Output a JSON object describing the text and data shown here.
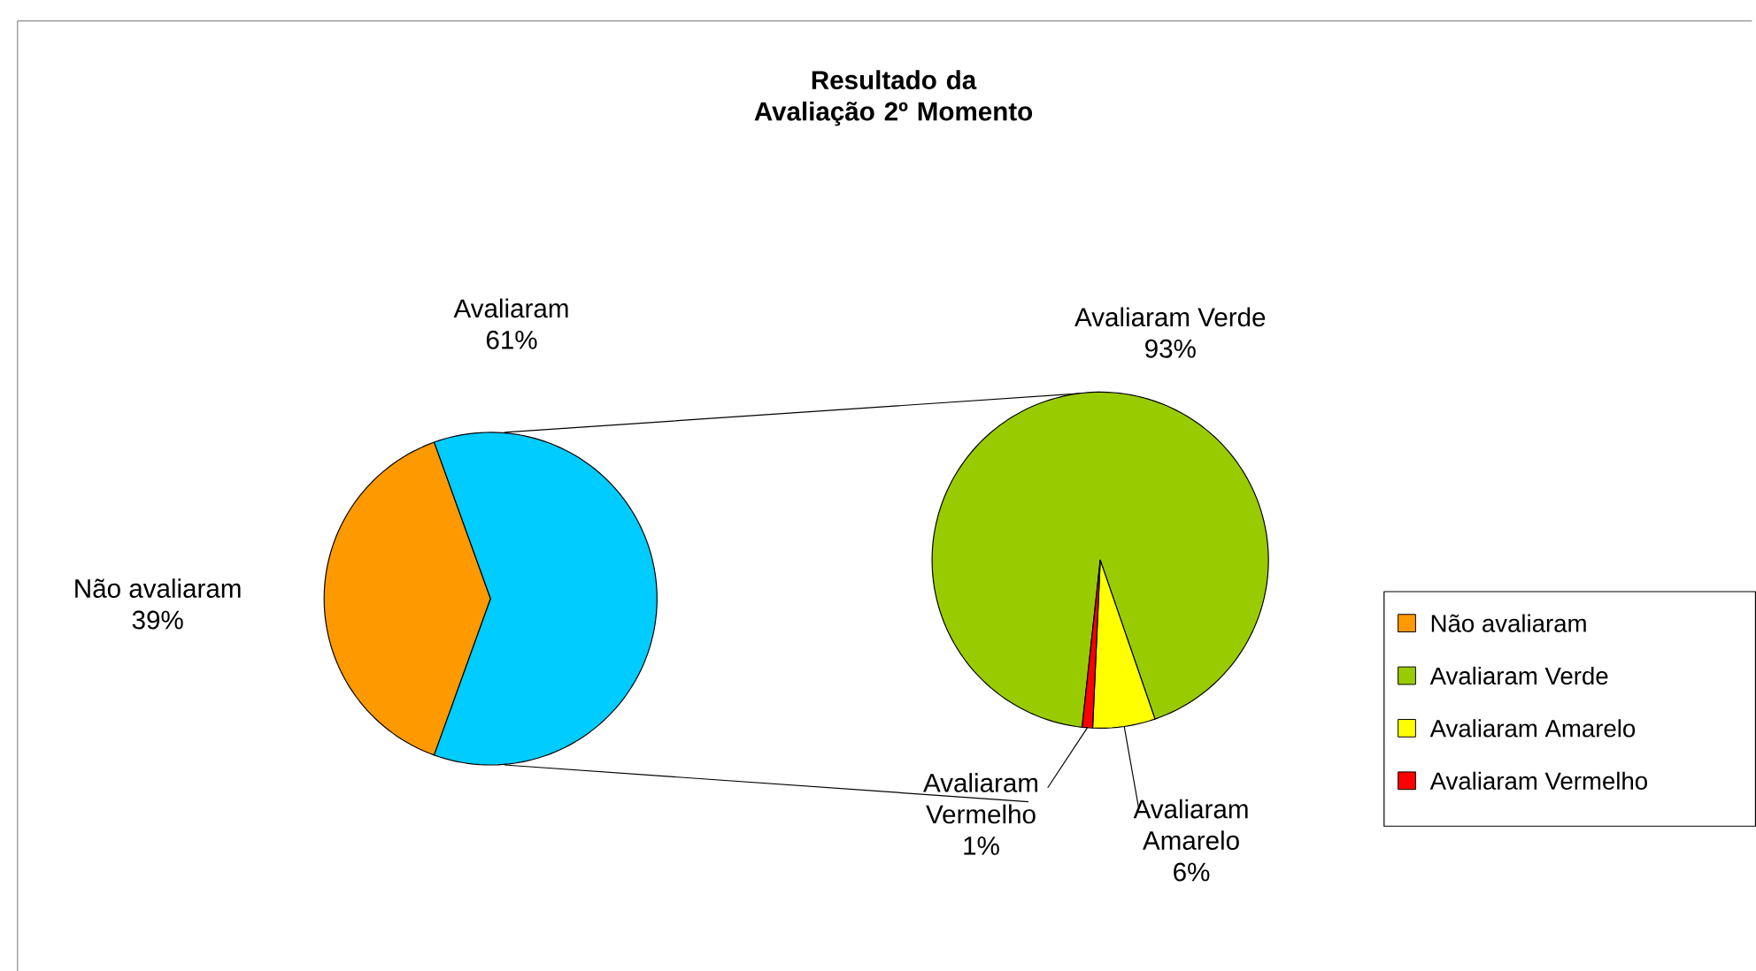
{
  "chart_data": [
    {
      "type": "pie",
      "title": "Resultado da Avaliação 2º Momento",
      "categories": [
        "Não avaliaram",
        "Avaliaram"
      ],
      "values": [
        39,
        61
      ],
      "value_labels": [
        "39%",
        "61%"
      ],
      "colors": [
        "#ff9900",
        "#00ccff"
      ],
      "legend": "right"
    },
    {
      "type": "pie",
      "categories": [
        "Avaliaram Verde",
        "Avaliaram Amarelo",
        "Avaliaram Vermelho"
      ],
      "values": [
        93,
        6,
        1
      ],
      "value_labels": [
        "93%",
        "6%",
        "1%"
      ],
      "colors": [
        "#99cc00",
        "#ffff00",
        "#ff0000"
      ],
      "legend": "right"
    }
  ]
}
